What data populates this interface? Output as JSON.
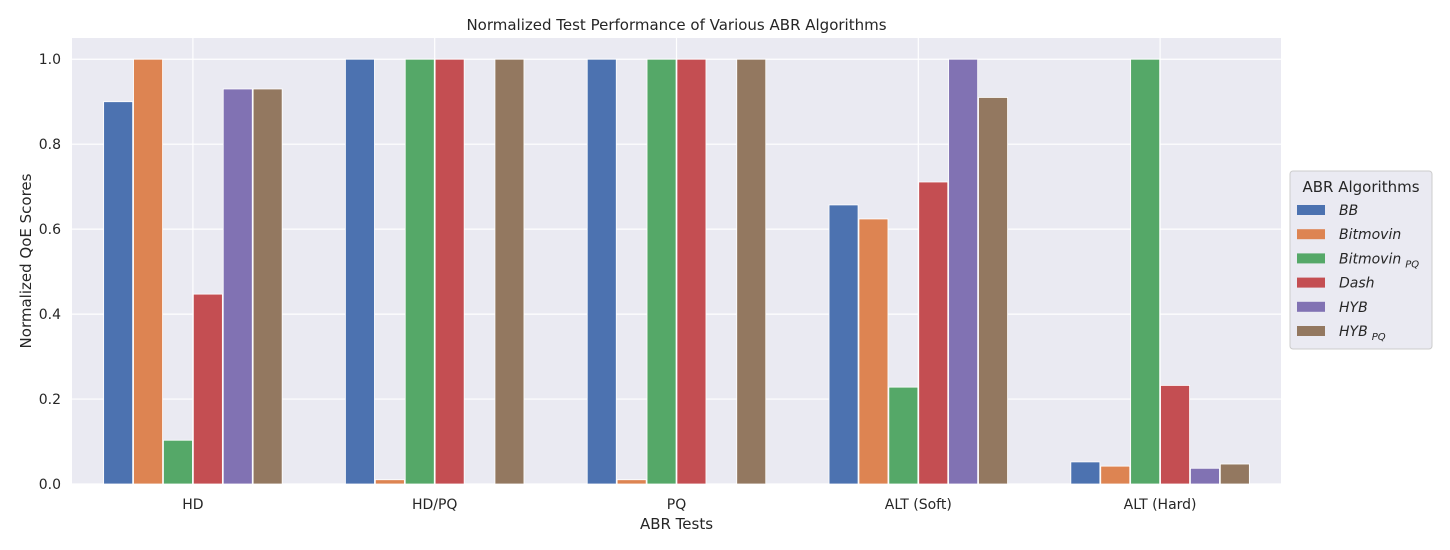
{
  "chart_data": {
    "type": "bar",
    "title": "Normalized Test Performance of Various ABR Algorithms",
    "xlabel": "ABR Tests",
    "ylabel": "Normalized QoE Scores",
    "ylim": [
      0,
      1.05
    ],
    "yticks": [
      "0.0",
      "0.2",
      "0.4",
      "0.6",
      "0.8",
      "1.0"
    ],
    "grid": true,
    "legend_title": "ABR Algorithms",
    "legend_position": "right",
    "categories": [
      "HD",
      "HD/PQ",
      "PQ",
      "ALT (Soft)",
      "ALT (Hard)"
    ],
    "series": [
      {
        "name": "BB",
        "subscript": "",
        "color": "#4c72b0",
        "values": [
          0.9,
          1.0,
          1.0,
          0.657,
          0.052
        ]
      },
      {
        "name": "Bitmovin",
        "subscript": "",
        "color": "#dd8452",
        "values": [
          1.0,
          0.01,
          0.01,
          0.624,
          0.042
        ]
      },
      {
        "name": "Bitmovin",
        "subscript": "PQ",
        "color": "#55a868",
        "values": [
          0.103,
          1.0,
          1.0,
          0.228,
          1.0
        ]
      },
      {
        "name": "Dash",
        "subscript": "",
        "color": "#c44e52",
        "values": [
          0.447,
          1.0,
          1.0,
          0.711,
          0.232
        ]
      },
      {
        "name": "HYB",
        "subscript": "",
        "color": "#8172b3",
        "values": [
          0.93,
          0.0,
          0.0,
          1.0,
          0.037
        ]
      },
      {
        "name": "HYB",
        "subscript": "PQ",
        "color": "#937860",
        "values": [
          0.93,
          1.0,
          1.0,
          0.91,
          0.047
        ]
      }
    ]
  }
}
